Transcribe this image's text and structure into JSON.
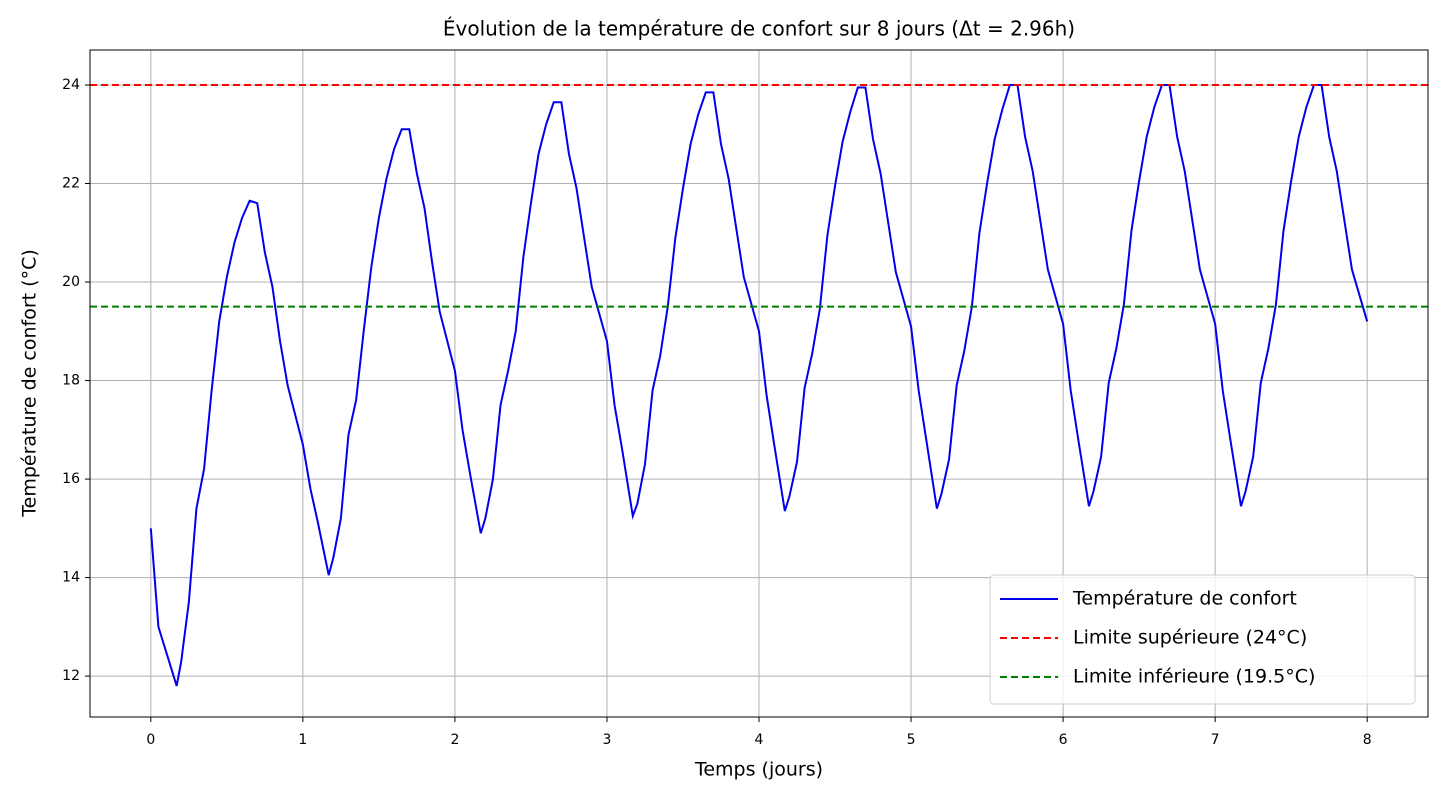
{
  "chart_data": {
    "type": "line",
    "title": "Évolution de la température de confort sur 8 jours (Δt = 2.96h)",
    "xlabel": "Temps (jours)",
    "ylabel": "Température de confort (°C)",
    "x": [
      0,
      0.05,
      0.1,
      0.17,
      0.2,
      0.25,
      0.3,
      0.35,
      0.4,
      0.45,
      0.5,
      0.55,
      0.6,
      0.65,
      0.7,
      0.75,
      0.8,
      0.85,
      0.9,
      1.0,
      1.05,
      1.1,
      1.17,
      1.2,
      1.25,
      1.3,
      1.35,
      1.4,
      1.45,
      1.5,
      1.55,
      1.6,
      1.65,
      1.7,
      1.75,
      1.8,
      1.85,
      1.9,
      2.0,
      2.05,
      2.1,
      2.17,
      2.2,
      2.25,
      2.3,
      2.35,
      2.4,
      2.45,
      2.5,
      2.55,
      2.6,
      2.65,
      2.7,
      2.75,
      2.8,
      2.85,
      2.9,
      3.0,
      3.05,
      3.1,
      3.17,
      3.2,
      3.25,
      3.3,
      3.35,
      3.4,
      3.45,
      3.5,
      3.55,
      3.6,
      3.65,
      3.7,
      3.75,
      3.8,
      3.85,
      3.9,
      4.0,
      4.05,
      4.1,
      4.17,
      4.2,
      4.25,
      4.3,
      4.35,
      4.4,
      4.45,
      4.5,
      4.55,
      4.6,
      4.65,
      4.7,
      4.75,
      4.8,
      4.85,
      4.9,
      5.0,
      5.05,
      5.1,
      5.17,
      5.2,
      5.25,
      5.3,
      5.35,
      5.4,
      5.45,
      5.5,
      5.55,
      5.6,
      5.65,
      5.7,
      5.75,
      5.8,
      5.85,
      5.9,
      6.0,
      6.05,
      6.1,
      6.17,
      6.2,
      6.25,
      6.3,
      6.35,
      6.4,
      6.45,
      6.5,
      6.55,
      6.6,
      6.65,
      6.7,
      6.75,
      6.8,
      6.85,
      6.9,
      7.0,
      7.05,
      7.1,
      7.17,
      7.2,
      7.25,
      7.3,
      7.35,
      7.4,
      7.45,
      7.5,
      7.55,
      7.6,
      7.65,
      7.7,
      7.75,
      7.8,
      7.85,
      7.9,
      8.0
    ],
    "series": [
      {
        "name": "Température de confort",
        "color": "#0000ee",
        "values": [
          15,
          13.0,
          12.5,
          11.8,
          12.3,
          13.5,
          15.4,
          16.2,
          17.8,
          19.2,
          20.1,
          20.8,
          21.3,
          21.65,
          21.6,
          20.6,
          19.9,
          18.8,
          17.9,
          16.7,
          15.8,
          15.1,
          14.05,
          14.4,
          15.2,
          16.9,
          17.6,
          19.0,
          20.3,
          21.3,
          22.1,
          22.7,
          23.1,
          23.1,
          22.2,
          21.5,
          20.4,
          19.4,
          18.2,
          17.0,
          16.1,
          14.9,
          15.2,
          16.0,
          17.5,
          18.2,
          19.0,
          20.5,
          21.6,
          22.6,
          23.2,
          23.65,
          23.65,
          22.6,
          21.9,
          20.9,
          19.9,
          18.8,
          17.5,
          16.6,
          15.25,
          15.5,
          16.3,
          17.8,
          18.5,
          19.5,
          20.9,
          21.9,
          22.8,
          23.4,
          23.85,
          23.85,
          22.8,
          22.1,
          21.1,
          20.1,
          19.0,
          17.7,
          16.7,
          15.35,
          15.65,
          16.35,
          17.85,
          18.55,
          19.45,
          20.95,
          21.95,
          22.85,
          23.45,
          23.95,
          23.95,
          22.9,
          22.2,
          21.2,
          20.2,
          19.1,
          17.8,
          16.8,
          15.4,
          15.7,
          16.4,
          17.9,
          18.6,
          19.5,
          21.0,
          22.0,
          22.9,
          23.5,
          24.0,
          24.0,
          22.95,
          22.25,
          21.25,
          20.25,
          19.15,
          17.8,
          16.8,
          15.45,
          15.75,
          16.45,
          17.95,
          18.65,
          19.55,
          21.05,
          22.05,
          22.95,
          23.55,
          24.0,
          24.0,
          22.95,
          22.25,
          21.25,
          20.25,
          19.15,
          17.8,
          16.8,
          15.45,
          15.75,
          16.45,
          17.95,
          18.65,
          19.55,
          21.05,
          22.05,
          22.95,
          23.55,
          24.0,
          24.0,
          22.95,
          22.25,
          21.25,
          20.25,
          19.2
        ]
      }
    ],
    "reference_lines": [
      {
        "name": "Limite supérieure (24°C)",
        "color": "#ff0000",
        "value": 24
      },
      {
        "name": "Limite inférieure (19.5°C)",
        "color": "#008000",
        "value": 19.5
      }
    ],
    "xlim": [
      -0.4,
      8.4
    ],
    "ylim": [
      11.17,
      24.71
    ],
    "xticks": [
      0,
      1,
      2,
      3,
      4,
      5,
      6,
      7,
      8
    ],
    "yticks": [
      12,
      14,
      16,
      18,
      20,
      22,
      24
    ],
    "grid": true,
    "legend": "lower right"
  }
}
